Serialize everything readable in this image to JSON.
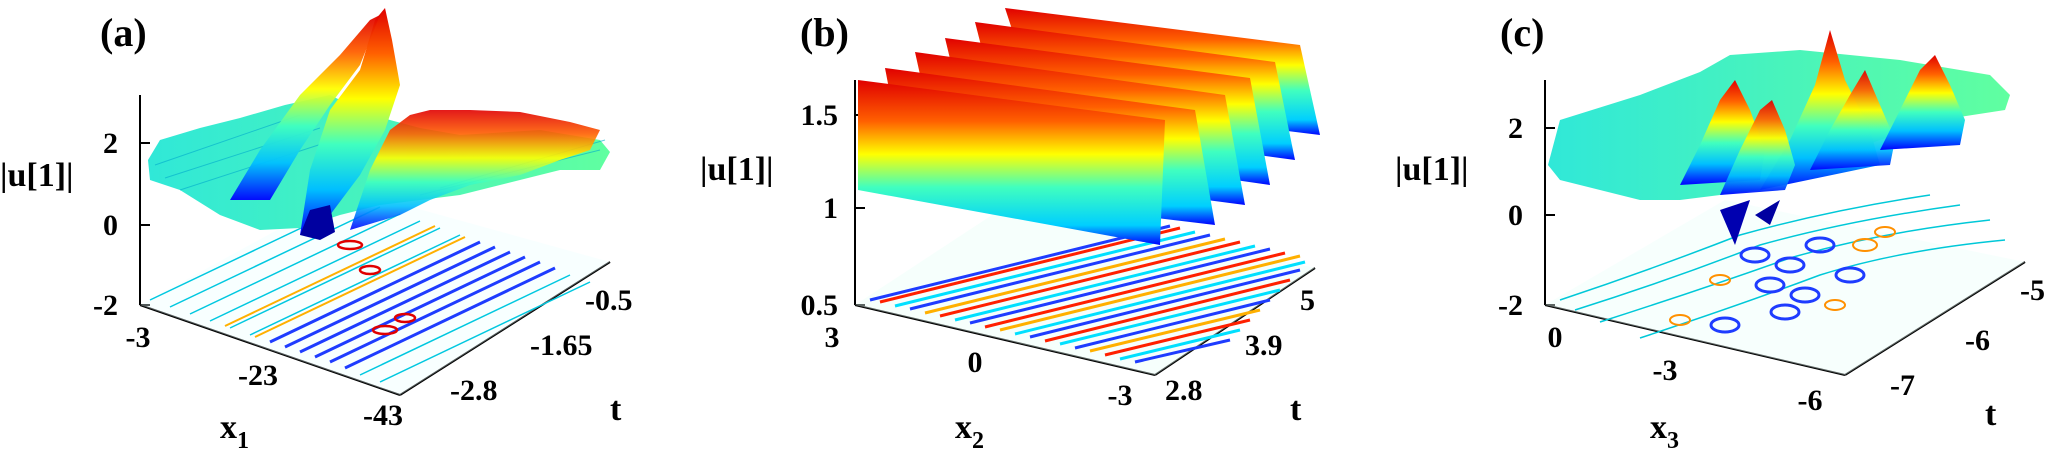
{
  "colors": {
    "colormap": [
      "#00008f",
      "#0000ff",
      "#0070ff",
      "#00dfff",
      "#50ffaf",
      "#bfff40",
      "#ffcf00",
      "#ff6000",
      "#ef0000",
      "#800000"
    ],
    "axis": "#000000"
  },
  "chart_data": [
    {
      "type": "surface",
      "panel_label": "(a)",
      "zlabel": "|u[1]|",
      "xlabel": "x",
      "xlabel_sub": "1",
      "ylabel": "t",
      "x_ticks": [
        "-3",
        "-23",
        "-43"
      ],
      "y_ticks": [
        "-0.5",
        "-1.65",
        "-2.8"
      ],
      "z_ticks": [
        "2",
        "0",
        "-2"
      ],
      "xlim": [
        -3,
        -43
      ],
      "ylim": [
        -2.8,
        -0.5
      ],
      "zlim": [
        -2,
        3.2
      ],
      "surface_min": -0.3,
      "surface_max": 3.0,
      "surface_base": 1.4,
      "contour_projection": true
    },
    {
      "type": "surface",
      "panel_label": "(b)",
      "zlabel": "|u[1]|",
      "xlabel": "x",
      "xlabel_sub": "2",
      "ylabel": "t",
      "x_ticks": [
        "3",
        "0",
        "-3"
      ],
      "y_ticks": [
        "5",
        "3.9",
        "2.8"
      ],
      "z_ticks": [
        "1.5",
        "1",
        "0.5"
      ],
      "xlim": [
        3,
        -3
      ],
      "ylim": [
        2.8,
        5
      ],
      "zlim": [
        0.5,
        1.6
      ],
      "surface_min": 1.0,
      "surface_max": 1.6,
      "surface_base": 1.0,
      "contour_projection": true
    },
    {
      "type": "surface",
      "panel_label": "(c)",
      "zlabel": "|u[1]|",
      "xlabel": "x",
      "xlabel_sub": "3",
      "ylabel": "t",
      "x_ticks": [
        "0",
        "-3",
        "-6"
      ],
      "y_ticks": [
        "-5",
        "-6",
        "-7"
      ],
      "z_ticks": [
        "2",
        "0",
        "-2"
      ],
      "xlim": [
        0,
        -6
      ],
      "ylim": [
        -7,
        -5
      ],
      "zlim": [
        -2,
        3
      ],
      "surface_min": -0.5,
      "surface_max": 2.8,
      "surface_base": 1.2,
      "contour_projection": true
    }
  ]
}
